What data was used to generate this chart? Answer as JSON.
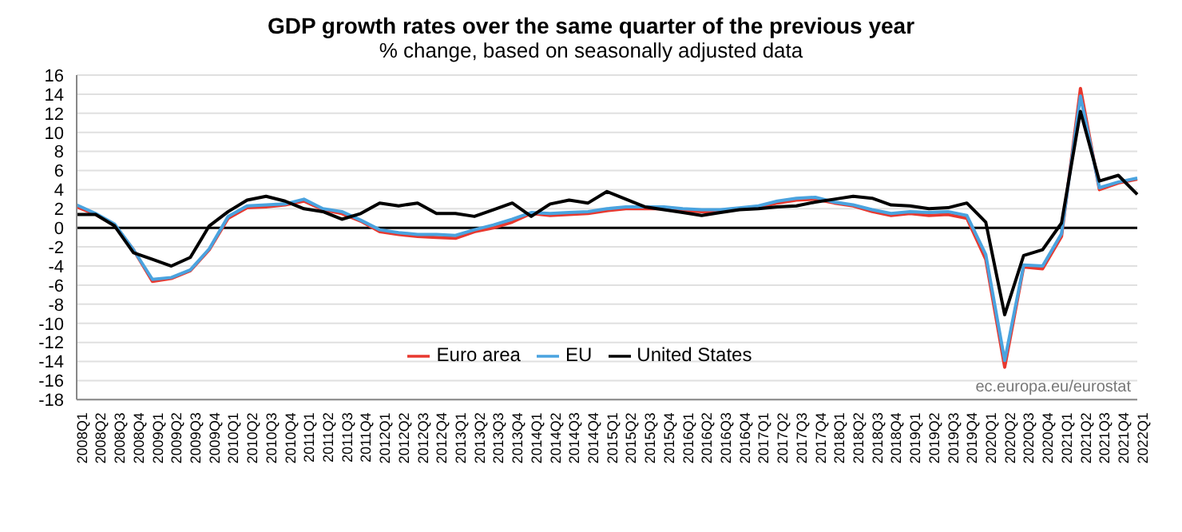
{
  "chart_data": {
    "type": "line",
    "title": "GDP growth rates over the same quarter of the previous year",
    "subtitle": "% change, based on seasonally adjusted data",
    "categories": [
      "2008Q1",
      "2008Q2",
      "2008Q3",
      "2008Q4",
      "2009Q1",
      "2009Q2",
      "2009Q3",
      "2009Q4",
      "2010Q1",
      "2010Q2",
      "2010Q3",
      "2010Q4",
      "2011Q1",
      "2011Q2",
      "2011Q3",
      "2011Q4",
      "2012Q1",
      "2012Q2",
      "2012Q3",
      "2012Q4",
      "2013Q1",
      "2013Q2",
      "2013Q3",
      "2013Q4",
      "2014Q1",
      "2014Q2",
      "2014Q3",
      "2014Q4",
      "2015Q1",
      "2015Q2",
      "2015Q3",
      "2015Q4",
      "2016Q1",
      "2016Q2",
      "2016Q3",
      "2016Q4",
      "2017Q1",
      "2017Q2",
      "2017Q3",
      "2017Q4",
      "2018Q1",
      "2018Q2",
      "2018Q3",
      "2018Q4",
      "2019Q1",
      "2019Q2",
      "2019Q3",
      "2019Q4",
      "2020Q1",
      "2020Q2",
      "2020Q3",
      "2020Q4",
      "2021Q1",
      "2021Q2",
      "2021Q3",
      "2021Q4",
      "2022Q1"
    ],
    "series": [
      {
        "name": "Euro area",
        "color": "#e8392f",
        "values": [
          2.2,
          1.4,
          0.3,
          -2.3,
          -5.6,
          -5.3,
          -4.5,
          -2.3,
          1.0,
          2.1,
          2.2,
          2.4,
          2.8,
          1.9,
          1.5,
          0.7,
          -0.4,
          -0.7,
          -0.9,
          -1.0,
          -1.1,
          -0.4,
          0.0,
          0.6,
          1.5,
          1.3,
          1.4,
          1.5,
          1.8,
          2.0,
          2.0,
          2.0,
          1.8,
          1.7,
          1.7,
          2.0,
          2.1,
          2.6,
          2.9,
          3.0,
          2.6,
          2.3,
          1.7,
          1.3,
          1.5,
          1.3,
          1.4,
          1.0,
          -3.3,
          -14.6,
          -4.1,
          -4.3,
          -0.9,
          14.6,
          4.0,
          4.7,
          5.1
        ]
      },
      {
        "name": "EU",
        "color": "#4aa3df",
        "values": [
          2.4,
          1.5,
          0.4,
          -2.3,
          -5.4,
          -5.2,
          -4.4,
          -2.2,
          1.2,
          2.3,
          2.4,
          2.5,
          3.0,
          2.0,
          1.7,
          0.8,
          -0.2,
          -0.5,
          -0.7,
          -0.7,
          -0.8,
          -0.2,
          0.3,
          0.9,
          1.6,
          1.5,
          1.6,
          1.7,
          2.0,
          2.2,
          2.2,
          2.2,
          2.0,
          1.9,
          1.9,
          2.1,
          2.3,
          2.8,
          3.1,
          3.2,
          2.7,
          2.4,
          1.9,
          1.5,
          1.7,
          1.6,
          1.7,
          1.3,
          -2.8,
          -13.9,
          -3.9,
          -4.0,
          -0.6,
          13.8,
          4.2,
          4.8,
          5.2
        ]
      },
      {
        "name": "United States",
        "color": "#000000",
        "values": [
          1.4,
          1.4,
          0.2,
          -2.6,
          -3.3,
          -4.0,
          -3.1,
          0.2,
          1.7,
          2.9,
          3.3,
          2.8,
          2.0,
          1.7,
          0.9,
          1.5,
          2.6,
          2.3,
          2.6,
          1.5,
          1.5,
          1.2,
          1.9,
          2.6,
          1.2,
          2.5,
          2.9,
          2.6,
          3.8,
          3.0,
          2.2,
          1.9,
          1.6,
          1.3,
          1.6,
          1.9,
          2.0,
          2.2,
          2.3,
          2.7,
          3.0,
          3.3,
          3.1,
          2.4,
          2.3,
          2.0,
          2.1,
          2.6,
          0.6,
          -9.1,
          -2.9,
          -2.3,
          0.5,
          12.2,
          4.9,
          5.5,
          3.5
        ]
      }
    ],
    "ylim": [
      -18,
      16
    ],
    "yticks": [
      -18,
      -16,
      -14,
      -12,
      -10,
      -8,
      -6,
      -4,
      -2,
      0,
      2,
      4,
      6,
      8,
      10,
      12,
      14,
      16
    ],
    "grid": "y",
    "legend": "bottom",
    "marker": "none",
    "line_style": "solid",
    "ref_lines": [
      {
        "axis": "y",
        "value": 0,
        "color": "#000000"
      }
    ],
    "annotations": [
      "ec.europa.eu/eurostat"
    ]
  }
}
